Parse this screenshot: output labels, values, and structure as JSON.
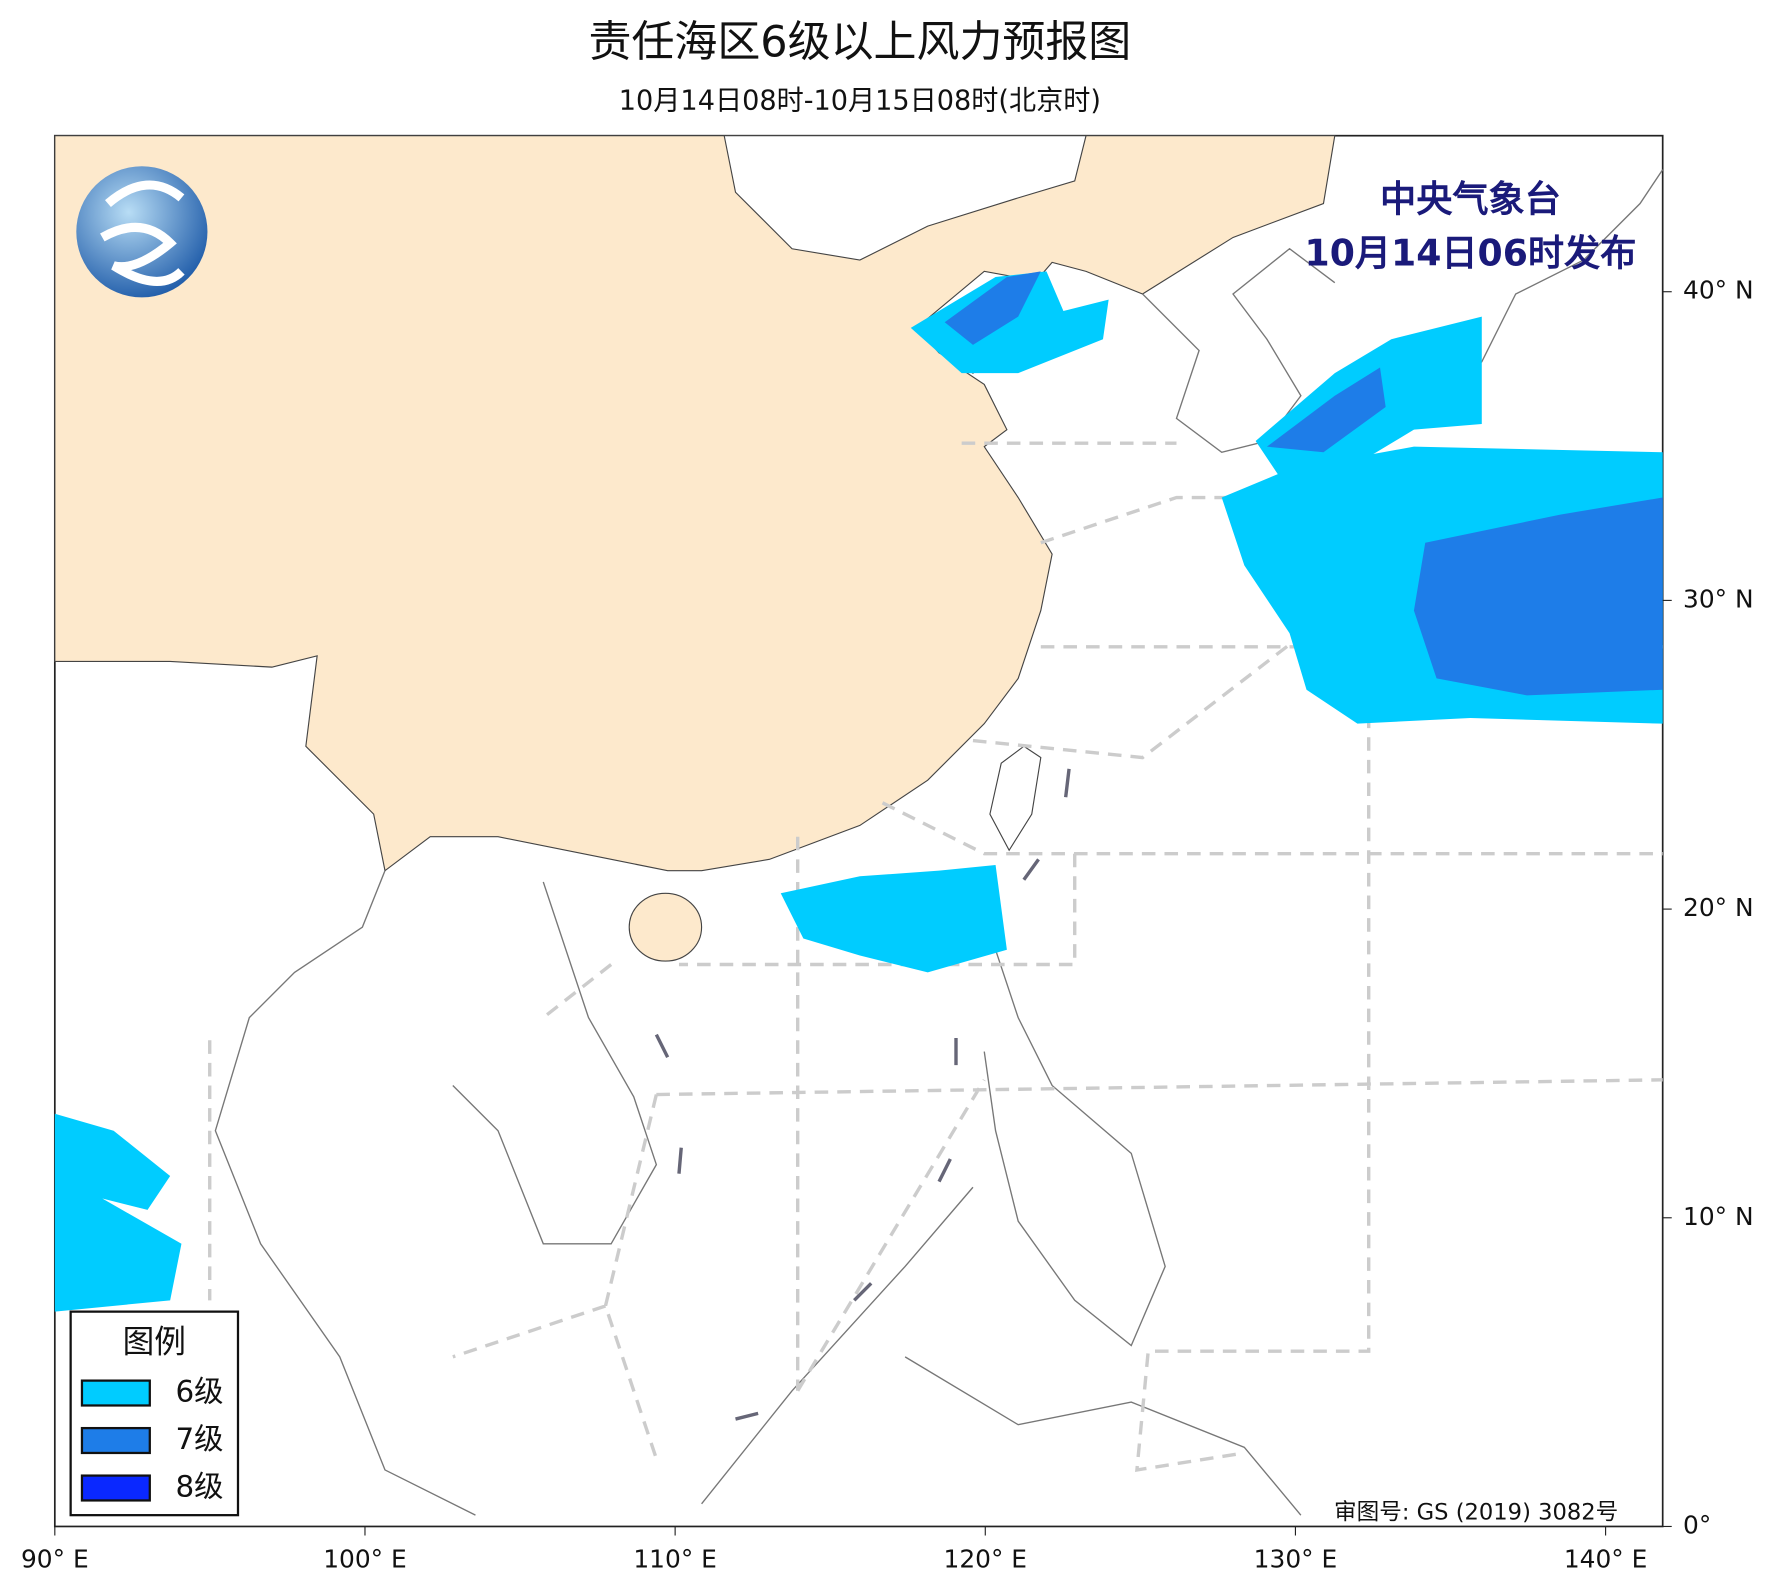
{
  "header": {
    "title": "责任海区6级以上风力预报图",
    "subtitle": "10月14日08时-10月15日08时(北京时)"
  },
  "issuer": {
    "agency": "中央气象台",
    "time": "10月14日06时发布"
  },
  "legend": {
    "title": "图例",
    "items": [
      {
        "label": "6级",
        "color": "#00ccff"
      },
      {
        "label": "7级",
        "color": "#1e7de8"
      },
      {
        "label": "8级",
        "color": "#0a28ff"
      }
    ]
  },
  "axes": {
    "xticks": [
      {
        "value": 90,
        "label": "90° E"
      },
      {
        "value": 100,
        "label": "100° E"
      },
      {
        "value": 110,
        "label": "110° E"
      },
      {
        "value": 120,
        "label": "120° E"
      },
      {
        "value": 130,
        "label": "130° E"
      },
      {
        "value": 140,
        "label": "140° E"
      }
    ],
    "yticks": [
      {
        "value": 0,
        "label": "0°"
      },
      {
        "value": 10,
        "label": "10° N"
      },
      {
        "value": 20,
        "label": "20° N"
      },
      {
        "value": 30,
        "label": "30° N"
      },
      {
        "value": 40,
        "label": "40° N"
      }
    ]
  },
  "approval": "审图号: GS (2019) 3082号"
}
